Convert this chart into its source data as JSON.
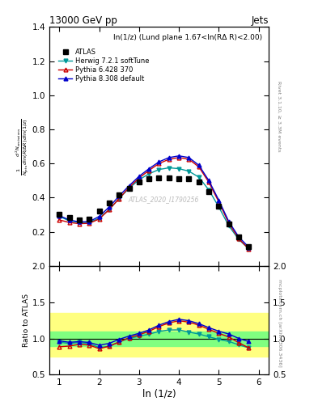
{
  "title_top": "13000 GeV pp",
  "title_right": "Jets",
  "annotation": "ln(1/z) (Lund plane 1.67<ln(RΔ R)<2.00)",
  "watermark": "ATLAS_2020_I1790256",
  "xlabel": "ln (1/z)",
  "ylabel_main": "$\\frac{1}{N_{\\mathrm{jets}}}\\frac{d^2 N_{\\mathrm{emissions}}}{d\\ln(R/\\Delta R)\\,d\\ln(1/z)}$",
  "ylabel_ratio": "Ratio to ATLAS",
  "right_label_top": "Rivet 3.1.10, ≥ 3.3M events",
  "right_label_bottom": "mcplots.cern.ch [arXiv:1306.3436]",
  "x_main": [
    1.0,
    1.25,
    1.5,
    1.75,
    2.0,
    2.25,
    2.5,
    2.75,
    3.0,
    3.25,
    3.5,
    3.75,
    4.0,
    4.25,
    4.5,
    4.75,
    5.0,
    5.25,
    5.5,
    5.75
  ],
  "atlas_y": [
    0.305,
    0.285,
    0.27,
    0.275,
    0.32,
    0.37,
    0.415,
    0.455,
    0.49,
    0.51,
    0.515,
    0.515,
    0.51,
    0.51,
    0.49,
    0.435,
    0.35,
    0.245,
    0.17,
    0.115
  ],
  "herwig_y": [
    0.29,
    0.265,
    0.255,
    0.255,
    0.28,
    0.33,
    0.395,
    0.455,
    0.505,
    0.54,
    0.565,
    0.575,
    0.57,
    0.555,
    0.52,
    0.445,
    0.345,
    0.235,
    0.155,
    0.1
  ],
  "pythia6_y": [
    0.27,
    0.255,
    0.248,
    0.25,
    0.275,
    0.33,
    0.395,
    0.46,
    0.515,
    0.56,
    0.6,
    0.625,
    0.635,
    0.625,
    0.58,
    0.49,
    0.375,
    0.25,
    0.16,
    0.1
  ],
  "pythia8_y": [
    0.295,
    0.27,
    0.258,
    0.26,
    0.29,
    0.345,
    0.41,
    0.47,
    0.525,
    0.57,
    0.61,
    0.635,
    0.645,
    0.635,
    0.59,
    0.5,
    0.385,
    0.26,
    0.17,
    0.11
  ],
  "ratio_herwig": [
    0.95,
    0.93,
    0.945,
    0.927,
    0.875,
    0.892,
    0.952,
    1.0,
    1.031,
    1.059,
    1.097,
    1.117,
    1.118,
    1.088,
    1.061,
    1.023,
    0.986,
    0.959,
    0.912,
    0.87
  ],
  "ratio_pythia6": [
    0.885,
    0.895,
    0.919,
    0.909,
    0.859,
    0.892,
    0.952,
    1.011,
    1.051,
    1.098,
    1.165,
    1.214,
    1.245,
    1.225,
    1.184,
    1.126,
    1.071,
    1.02,
    0.941,
    0.87
  ],
  "ratio_pythia8": [
    0.967,
    0.947,
    0.956,
    0.945,
    0.906,
    0.932,
    0.988,
    1.033,
    1.071,
    1.118,
    1.184,
    1.233,
    1.265,
    1.245,
    1.204,
    1.149,
    1.1,
    1.061,
    1.0,
    0.957
  ],
  "atlas_color": "#000000",
  "herwig_color": "#009999",
  "pythia6_color": "#cc0000",
  "pythia8_color": "#0000cc",
  "band_yellow": {
    "lo": 0.75,
    "hi": 1.35
  },
  "band_green": {
    "lo": 0.9,
    "hi": 1.1
  },
  "ylim_main": [
    0.0,
    1.4
  ],
  "ylim_ratio": [
    0.5,
    2.0
  ],
  "xlim": [
    0.75,
    6.25
  ],
  "xticks": [
    1,
    2,
    3,
    4,
    5,
    6
  ],
  "yticks_main": [
    0.2,
    0.4,
    0.6,
    0.8,
    1.0,
    1.2,
    1.4
  ],
  "yticks_ratio": [
    0.5,
    1.0,
    1.5,
    2.0
  ]
}
